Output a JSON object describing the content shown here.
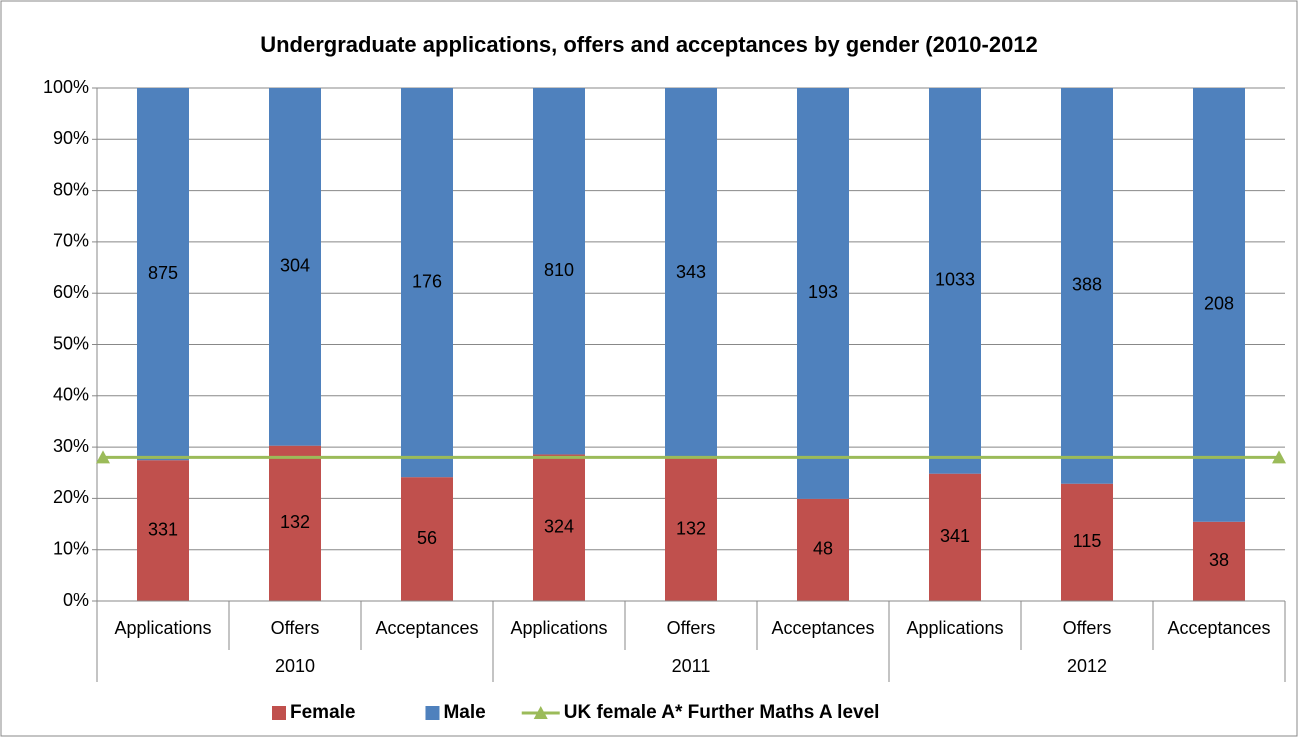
{
  "chart_data": {
    "type": "bar",
    "stacking": "percent",
    "title": "Undergraduate applications, offers and acceptances by gender (2010-2012",
    "categories": [
      "Applications",
      "Offers",
      "Acceptances",
      "Applications",
      "Offers",
      "Acceptances",
      "Applications",
      "Offers",
      "Acceptances"
    ],
    "groups": [
      "2010",
      "2011",
      "2012"
    ],
    "series": [
      {
        "name": "Female",
        "color": "#c0504d",
        "values": [
          331,
          132,
          56,
          324,
          132,
          48,
          341,
          115,
          38
        ]
      },
      {
        "name": "Male",
        "color": "#4f81bd",
        "values": [
          875,
          304,
          176,
          810,
          343,
          193,
          1033,
          388,
          208
        ]
      }
    ],
    "reference_lines": [
      {
        "name": "UK female A* Further Maths A level",
        "color": "#9bbb59",
        "value": 28
      }
    ],
    "ylim": [
      0,
      100
    ],
    "yticks": [
      {
        "value": 0,
        "label": "0%"
      },
      {
        "value": 10,
        "label": "10%"
      },
      {
        "value": 20,
        "label": "20%"
      },
      {
        "value": 30,
        "label": "30%"
      },
      {
        "value": 40,
        "label": "40%"
      },
      {
        "value": 50,
        "label": "50%"
      },
      {
        "value": 60,
        "label": "60%"
      },
      {
        "value": 70,
        "label": "70%"
      },
      {
        "value": 80,
        "label": "80%"
      },
      {
        "value": 90,
        "label": "90%"
      },
      {
        "value": 100,
        "label": "100%"
      }
    ],
    "grid": true,
    "legend": "bottom"
  }
}
